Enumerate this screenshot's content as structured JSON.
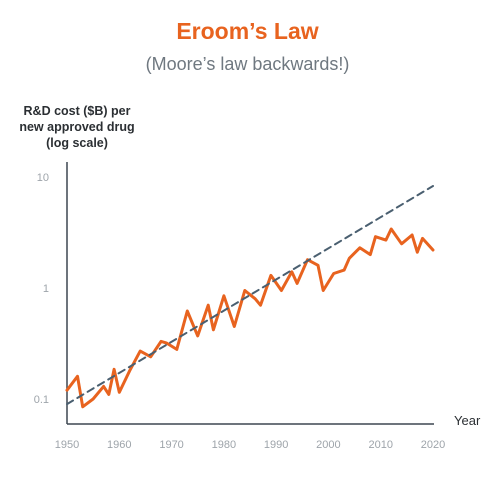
{
  "chart_data": {
    "type": "line",
    "title": "Eroom’s Law",
    "subtitle": "(Moore’s law backwards!)",
    "ylabel": "R&D cost ($B) per\nnew approved drug\n(log scale)",
    "xlabel": "Year",
    "yscale": "log",
    "xlim": [
      1950,
      2020
    ],
    "ylim": [
      0.08,
      12
    ],
    "x_ticks": [
      1950,
      1960,
      1970,
      1980,
      1990,
      2000,
      2010,
      2020
    ],
    "y_ticks": [
      {
        "value": 0.1,
        "label": "0.1"
      },
      {
        "value": 1,
        "label": "1"
      },
      {
        "value": 10,
        "label": "10"
      }
    ],
    "series": [
      {
        "color": "#e8631f",
        "style": "solid",
        "x": [
          1950,
          1952,
          1953,
          1955,
          1957,
          1958,
          1959,
          1960,
          1962,
          1964,
          1966,
          1968,
          1969,
          1971,
          1973,
          1975,
          1977,
          1978,
          1980,
          1982,
          1984,
          1986,
          1987,
          1989,
          1991,
          1993,
          1994,
          1996,
          1998,
          1999,
          2001,
          2003,
          2004,
          2006,
          2008,
          2009,
          2011,
          2012,
          2014,
          2016,
          2017,
          2018,
          2020
        ],
        "y": [
          0.12,
          0.16,
          0.085,
          0.1,
          0.13,
          0.11,
          0.185,
          0.115,
          0.18,
          0.27,
          0.24,
          0.33,
          0.32,
          0.28,
          0.62,
          0.37,
          0.7,
          0.42,
          0.85,
          0.45,
          0.95,
          0.8,
          0.7,
          1.3,
          0.95,
          1.4,
          1.1,
          1.8,
          1.6,
          0.95,
          1.35,
          1.45,
          1.85,
          2.3,
          2.0,
          2.9,
          2.7,
          3.4,
          2.5,
          3.0,
          2.1,
          2.8,
          2.2
        ]
      },
      {
        "color": "#4a5f70",
        "style": "dashed",
        "x": [
          1950,
          2020
        ],
        "y": [
          0.09,
          8.3
        ]
      }
    ]
  }
}
